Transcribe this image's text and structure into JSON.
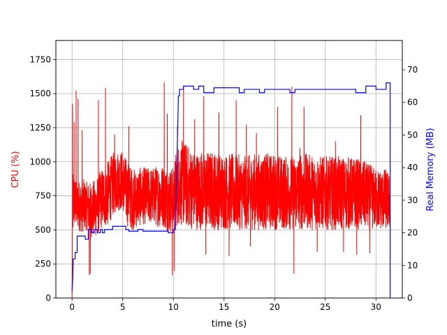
{
  "chart_data": {
    "type": "line",
    "title": "",
    "xlabel": "time (s)",
    "ylabel_left": "CPU (%)",
    "ylabel_right": "Real Memory (MB)",
    "xlim": [
      -1.6,
      32.6
    ],
    "ylim_left": [
      0,
      1890
    ],
    "ylim_right": [
      0,
      79
    ],
    "x_ticks": [
      0,
      5,
      10,
      15,
      20,
      25,
      30
    ],
    "y_left_ticks": [
      0,
      250,
      500,
      750,
      1000,
      1250,
      1500,
      1750
    ],
    "y_right_ticks": [
      0,
      10,
      20,
      30,
      40,
      50,
      60,
      70
    ],
    "grid": true,
    "colors": {
      "cpu": "#ff0000",
      "memory": "#0000ff",
      "left_label": "#ff0000",
      "right_label": "#0000ff"
    },
    "series": [
      {
        "axis": "left",
        "noisy": true,
        "x": [
          0.0,
          0.05,
          0.2,
          0.5,
          1.0,
          1.5,
          2.0,
          2.5,
          3.0,
          3.5,
          4.0,
          4.5,
          5.0,
          5.5,
          6.0,
          6.5,
          7.0,
          7.5,
          8.0,
          8.5,
          9.0,
          9.5,
          10.0,
          10.3,
          10.6,
          11.0,
          12.0,
          13.0,
          14.0,
          15.0,
          16.0,
          17.0,
          18.0,
          19.0,
          20.0,
          21.0,
          22.0,
          23.0,
          24.0,
          25.0,
          26.0,
          27.0,
          28.0,
          29.0,
          30.0,
          31.0,
          31.4
        ],
        "low": [
          0,
          400,
          520,
          500,
          480,
          500,
          430,
          460,
          520,
          520,
          600,
          640,
          640,
          520,
          500,
          520,
          540,
          540,
          540,
          520,
          520,
          480,
          470,
          520,
          540,
          520,
          500,
          500,
          500,
          500,
          500,
          500,
          500,
          500,
          500,
          500,
          500,
          500,
          500,
          500,
          500,
          500,
          500,
          500,
          500,
          500,
          500
        ],
        "high": [
          0,
          1000,
          900,
          850,
          880,
          850,
          850,
          900,
          960,
          1000,
          1060,
          1090,
          1080,
          1000,
          950,
          950,
          960,
          960,
          960,
          980,
          980,
          960,
          960,
          1100,
          1150,
          1160,
          1080,
          1080,
          1080,
          1060,
          1060,
          1040,
          1060,
          1060,
          1060,
          1040,
          1050,
          1060,
          1050,
          1040,
          1040,
          1040,
          1030,
          1000,
          950,
          950,
          900
        ],
        "spikes": [
          [
            0.05,
            1420
          ],
          [
            0.2,
            1290
          ],
          [
            0.4,
            1520
          ],
          [
            0.6,
            1460
          ],
          [
            1.0,
            1230
          ],
          [
            1.7,
            170
          ],
          [
            1.8,
            180
          ],
          [
            2.6,
            1450
          ],
          [
            3.3,
            1540
          ],
          [
            4.2,
            1200
          ],
          [
            5.6,
            1260
          ],
          [
            9.1,
            1580
          ],
          [
            9.4,
            1350
          ],
          [
            9.9,
            170
          ],
          [
            10.1,
            200
          ],
          [
            10.4,
            1260
          ],
          [
            11.0,
            1550
          ],
          [
            12.1,
            1310
          ],
          [
            13.0,
            1480
          ],
          [
            13.2,
            320
          ],
          [
            14.5,
            1360
          ],
          [
            15.5,
            310
          ],
          [
            16.2,
            1450
          ],
          [
            17.2,
            1270
          ],
          [
            17.6,
            380
          ],
          [
            18.2,
            1210
          ],
          [
            20.3,
            1400
          ],
          [
            21.7,
            1550
          ],
          [
            21.9,
            180
          ],
          [
            22.5,
            1100
          ],
          [
            22.9,
            1400
          ],
          [
            24.2,
            340
          ],
          [
            26.0,
            1150
          ],
          [
            26.8,
            340
          ],
          [
            28.1,
            320
          ],
          [
            28.5,
            1340
          ],
          [
            29.4,
            330
          ],
          [
            31.4,
            340
          ]
        ]
      },
      {
        "axis": "right",
        "x": [
          0.0,
          0.05,
          0.1,
          0.1,
          0.3,
          0.3,
          0.5,
          0.5,
          1.3,
          1.3,
          1.6,
          1.6,
          1.9,
          1.9,
          2.2,
          2.2,
          2.5,
          2.5,
          2.8,
          2.8,
          3.0,
          3.0,
          3.2,
          3.2,
          4.0,
          4.0,
          5.3,
          5.3,
          5.6,
          5.6,
          6.5,
          6.5,
          7.0,
          7.0,
          9.5,
          9.5,
          10.0,
          10.0,
          10.2,
          10.5,
          10.6,
          10.6,
          11.0,
          11.0,
          12.0,
          12.0,
          12.5,
          12.5,
          13.0,
          13.0,
          14.0,
          14.0,
          16.5,
          16.5,
          17.0,
          17.0,
          18.5,
          18.5,
          19.0,
          19.0,
          21.5,
          21.5,
          22.0,
          22.0,
          28.0,
          28.0,
          29.0,
          29.0,
          30.0,
          30.0,
          31.0,
          31.0,
          31.4,
          31.4,
          31.42
        ],
        "y": [
          2,
          5,
          10,
          12,
          12,
          14,
          14,
          19,
          19,
          18,
          18,
          21,
          21,
          20,
          20,
          21,
          21,
          20,
          20,
          21,
          21,
          20,
          20,
          21,
          21,
          22,
          22,
          21,
          21,
          20.5,
          20.5,
          21,
          21,
          20.5,
          20.5,
          20,
          20,
          21,
          21,
          62,
          62,
          64,
          64,
          65,
          65,
          64,
          64,
          65,
          65,
          63,
          63,
          64.5,
          64.5,
          63,
          63,
          64,
          64,
          63,
          63,
          64,
          64,
          63,
          63,
          64,
          64,
          63,
          63,
          65,
          65,
          64,
          64,
          66,
          66,
          0,
          0
        ]
      }
    ]
  }
}
